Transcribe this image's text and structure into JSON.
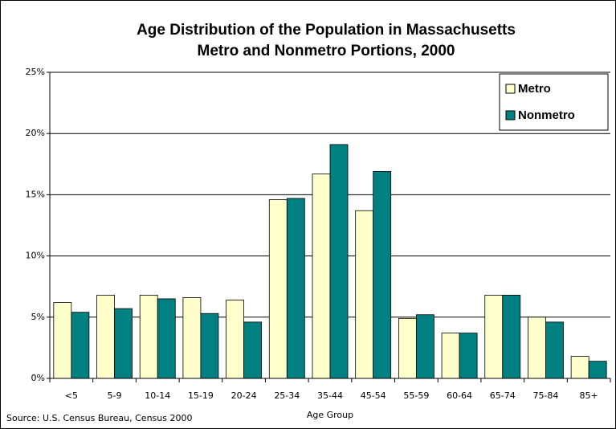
{
  "chart_data": {
    "type": "bar",
    "title": "Age Distribution of the Population in Massachusetts",
    "subtitle": "Metro and Nonmetro Portions, 2000",
    "x_label": "Age Group",
    "source": "Source: U.S. Census Bureau, Census 2000",
    "categories": [
      "<5",
      "5-9",
      "10-14",
      "15-19",
      "20-24",
      "25-34",
      "35-44",
      "45-54",
      "55-59",
      "60-64",
      "65-74",
      "75-84",
      "85+"
    ],
    "series": [
      {
        "name": "Metro",
        "color": "#ffffcc",
        "values": [
          6.2,
          6.8,
          6.8,
          6.6,
          6.4,
          14.6,
          16.7,
          13.7,
          4.9,
          3.7,
          6.8,
          5.0,
          1.8
        ]
      },
      {
        "name": "Nonmetro",
        "color": "#008080",
        "values": [
          5.4,
          5.7,
          6.5,
          5.3,
          4.6,
          14.7,
          19.1,
          16.9,
          5.2,
          3.7,
          6.8,
          4.6,
          1.4
        ]
      }
    ],
    "ylim": [
      0,
      25
    ],
    "yticks": [
      {
        "value": 0,
        "label": "0%"
      },
      {
        "value": 5,
        "label": "5%"
      },
      {
        "value": 10,
        "label": "10%"
      },
      {
        "value": 15,
        "label": "15%"
      },
      {
        "value": 20,
        "label": "20%"
      },
      {
        "value": 25,
        "label": "25%"
      }
    ],
    "grid": true,
    "legend": "top-right"
  }
}
